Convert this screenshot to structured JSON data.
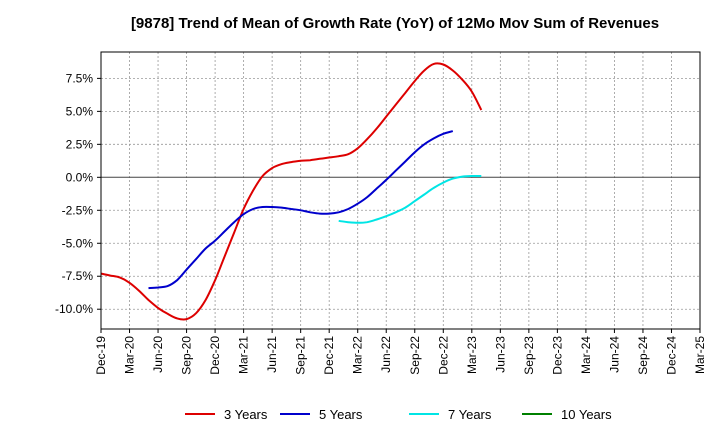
{
  "chart_data": {
    "type": "line",
    "title": "[9878]  Trend of Mean of Growth Rate (YoY) of 12Mo Mov Sum of Revenues",
    "xlabel": "",
    "ylabel": "",
    "x_ticks": [
      "Dec-19",
      "Mar-20",
      "Jun-20",
      "Sep-20",
      "Dec-20",
      "Mar-21",
      "Jun-21",
      "Sep-21",
      "Dec-21",
      "Mar-22",
      "Jun-22",
      "Sep-22",
      "Dec-22",
      "Mar-23",
      "Jun-23",
      "Sep-23",
      "Dec-23",
      "Mar-24",
      "Jun-24",
      "Sep-24",
      "Dec-24",
      "Mar-25"
    ],
    "y_ticks": [
      7.5,
      5.0,
      2.5,
      0.0,
      -2.5,
      -5.0,
      -7.5,
      -10.0
    ],
    "y_tick_labels": [
      "7.5%",
      "5.0%",
      "2.5%",
      "0.0%",
      "-2.5%",
      "-5.0%",
      "-7.5%",
      "-10.0%"
    ],
    "ylim": [
      -11.5,
      9.5
    ],
    "grid": true,
    "legend_position": "bottom",
    "series": [
      {
        "name": "3 Years",
        "color": "#dd0000",
        "start_index": 0,
        "values": [
          -7.3,
          -7.45,
          -7.6,
          -8.0,
          -8.6,
          -9.3,
          -9.9,
          -10.35,
          -10.7,
          -10.75,
          -10.3,
          -9.3,
          -7.8,
          -6.0,
          -4.2,
          -2.4,
          -1.0,
          0.1,
          0.7,
          1.0,
          1.15,
          1.25,
          1.3,
          1.4,
          1.5,
          1.6,
          1.75,
          2.2,
          2.9,
          3.7,
          4.6,
          5.5,
          6.4,
          7.3,
          8.1,
          8.6,
          8.55,
          8.1,
          7.4,
          6.5,
          5.1
        ]
      },
      {
        "name": "5 Years",
        "color": "#0000cc",
        "start_index": 5,
        "values": [
          -8.4,
          -8.35,
          -8.25,
          -7.8,
          -7.0,
          -6.2,
          -5.4,
          -4.8,
          -4.1,
          -3.4,
          -2.8,
          -2.4,
          -2.25,
          -2.25,
          -2.3,
          -2.4,
          -2.5,
          -2.65,
          -2.75,
          -2.75,
          -2.65,
          -2.4,
          -2.0,
          -1.5,
          -0.85,
          -0.2,
          0.5,
          1.2,
          1.9,
          2.5,
          2.95,
          3.3,
          3.5
        ]
      },
      {
        "name": "7 Years",
        "color": "#00e5e5",
        "start_index": 25,
        "values": [
          -3.3,
          -3.4,
          -3.45,
          -3.4,
          -3.2,
          -2.95,
          -2.65,
          -2.3,
          -1.8,
          -1.3,
          -0.8,
          -0.4,
          -0.1,
          0.05,
          0.1,
          0.1
        ]
      },
      {
        "name": "10 Years",
        "color": "#008000",
        "start_index": 0,
        "values": []
      }
    ]
  }
}
